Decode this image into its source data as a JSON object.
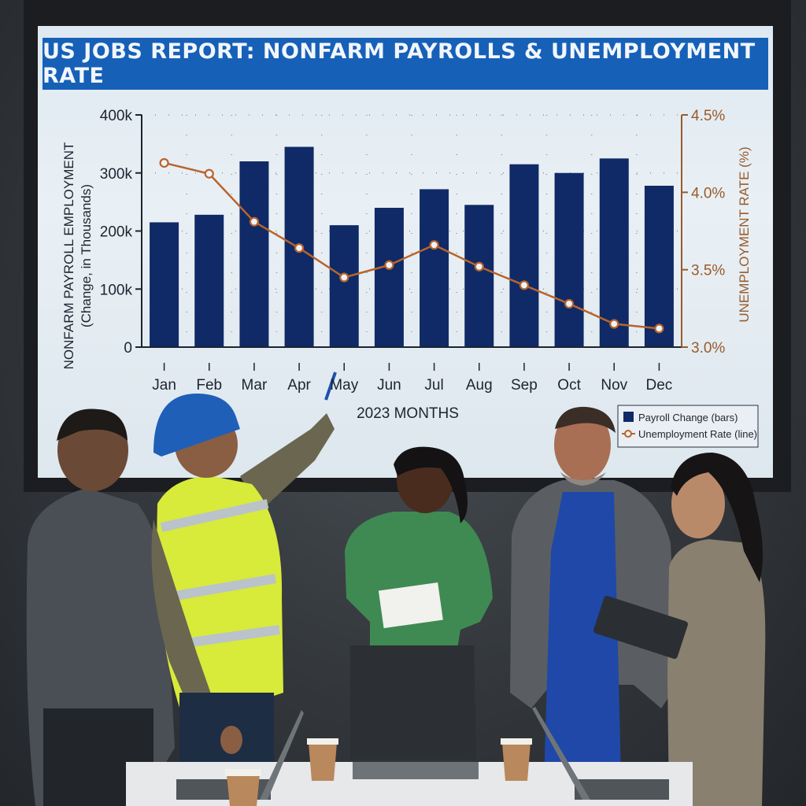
{
  "scene": {
    "description_ok": false
  },
  "chart_data": {
    "type": "bar",
    "title": "US JOBS REPORT: NONFARM PAYROLLS & UNEMPLOYMENT RATE",
    "xlabel": "2023 MONTHS",
    "ylabel_left_line1": "NONFARM PAYROLL EMPLOYMENT",
    "ylabel_left_line2": "(Change, in Thousands)",
    "ylabel_right": "UNEMPLOYMENT RATE (%)",
    "categories": [
      "Jan",
      "Feb",
      "Mar",
      "Apr",
      "May",
      "Jun",
      "Jul",
      "Aug",
      "Sep",
      "Oct",
      "Nov",
      "Dec"
    ],
    "left_ticks": [
      "0",
      "100k",
      "200k",
      "300k",
      "400k"
    ],
    "right_ticks": [
      "3.0%",
      "3.5%",
      "4.0%",
      "4.5%"
    ],
    "ylim_left": [
      0,
      400
    ],
    "ylim_right": [
      3.0,
      4.5
    ],
    "series": [
      {
        "name": "Payroll Change (bars)",
        "kind": "bar",
        "color": "#0f2a66",
        "values": [
          215,
          228,
          320,
          345,
          210,
          240,
          272,
          245,
          315,
          300,
          325,
          278
        ]
      },
      {
        "name": "Unemployment Rate (line)",
        "kind": "line",
        "color": "#b8642c",
        "values": [
          4.19,
          4.12,
          3.81,
          3.64,
          3.45,
          3.53,
          3.66,
          3.52,
          3.4,
          3.28,
          3.15,
          3.12
        ]
      }
    ],
    "legend": {
      "placement": "bottom-right",
      "bar_label": "Payroll Change (bars)",
      "line_label": "Unemployment Rate (line)"
    },
    "grid": true
  }
}
